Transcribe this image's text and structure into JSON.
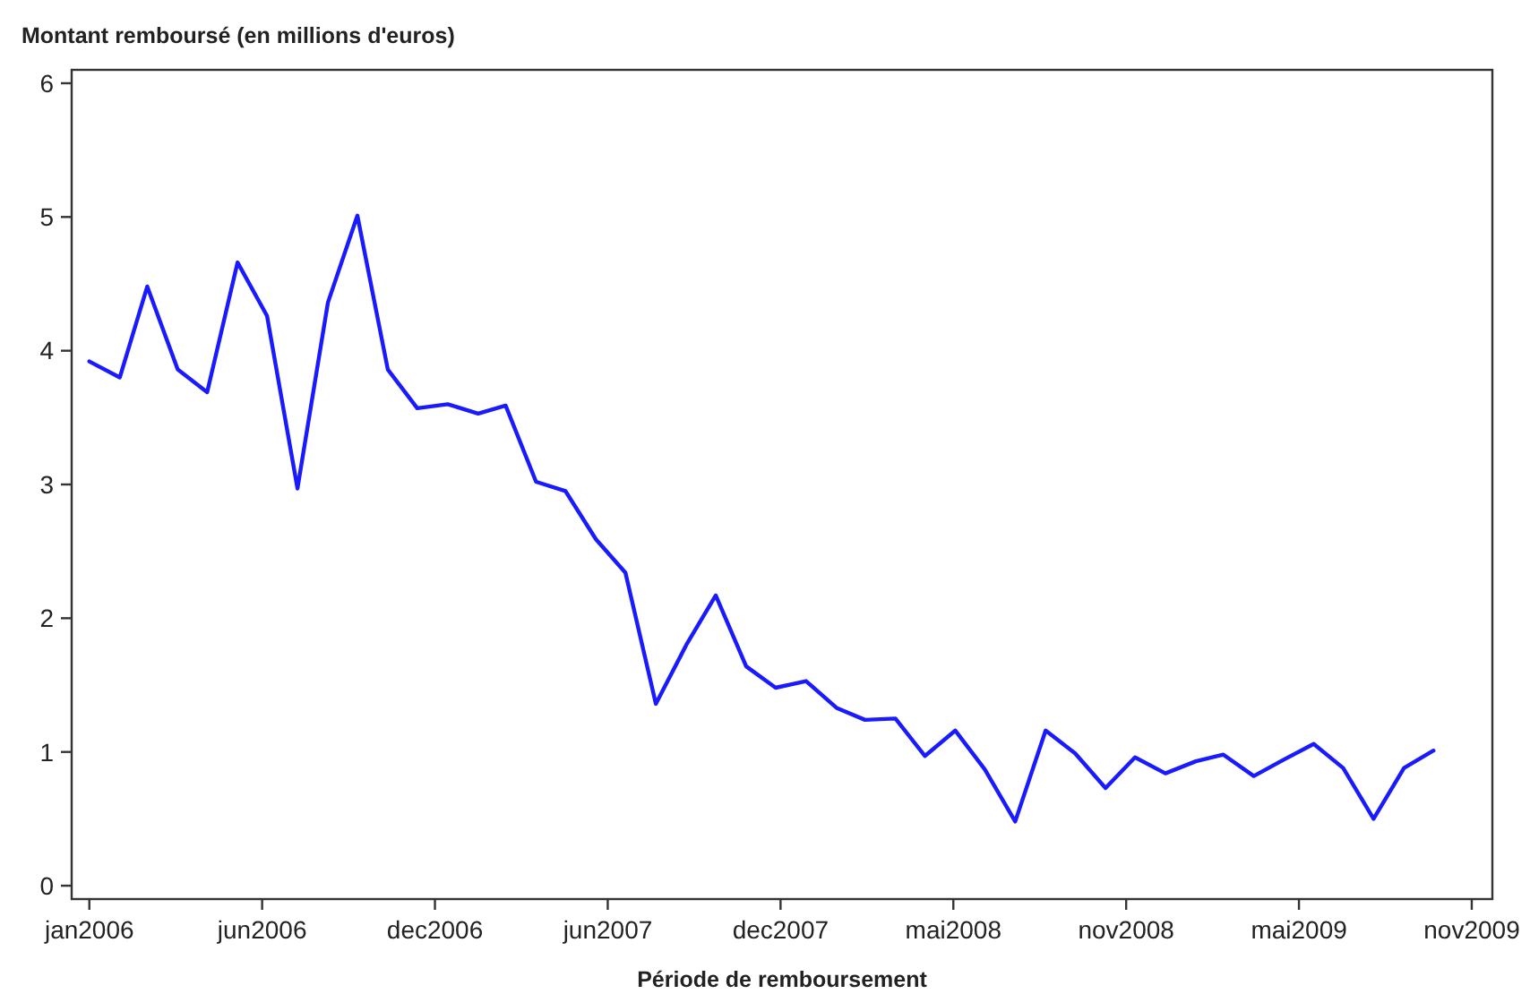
{
  "chart_data": {
    "type": "line",
    "ylabel": "Montant remboursé (en millions d'euros)",
    "xlabel": "Période de remboursement",
    "x": [
      "2006-01",
      "2006-02",
      "2006-03",
      "2006-04",
      "2006-05",
      "2006-06",
      "2006-07",
      "2006-08",
      "2006-09",
      "2006-10",
      "2006-11",
      "2006-12",
      "2007-01",
      "2007-02",
      "2007-03",
      "2007-04",
      "2007-05",
      "2007-06",
      "2007-07",
      "2007-08",
      "2007-09",
      "2007-10",
      "2007-11",
      "2007-12",
      "2008-01",
      "2008-02",
      "2008-03",
      "2008-04",
      "2008-05",
      "2008-06",
      "2008-07",
      "2008-08",
      "2008-09",
      "2008-10",
      "2008-11",
      "2008-12",
      "2009-01",
      "2009-02",
      "2009-03",
      "2009-04",
      "2009-05",
      "2009-06",
      "2009-07",
      "2009-08",
      "2009-09",
      "2009-10"
    ],
    "series": [
      {
        "color": "#1a1aff",
        "values": [
          3.92,
          3.8,
          4.48,
          3.86,
          3.69,
          4.66,
          4.26,
          2.97,
          4.36,
          5.01,
          3.86,
          3.57,
          3.6,
          3.53,
          3.59,
          3.02,
          2.95,
          2.59,
          2.34,
          1.36,
          1.8,
          2.17,
          1.64,
          1.48,
          1.53,
          1.33,
          1.24,
          1.25,
          0.97,
          1.16,
          0.87,
          0.48,
          1.16,
          0.99,
          0.73,
          0.96,
          0.84,
          0.93,
          0.98,
          0.82,
          0.94,
          1.06,
          0.88,
          0.5,
          0.88,
          1.01
        ]
      }
    ],
    "xlim": [
      "2005-12-14",
      "2009-11-30"
    ],
    "xticks": [
      {
        "value": "2006-01-01",
        "label": "jan2006"
      },
      {
        "value": "2006-06-26",
        "label": "jun2006"
      },
      {
        "value": "2006-12-19",
        "label": "dec2006"
      },
      {
        "value": "2007-06-13",
        "label": "jun2007"
      },
      {
        "value": "2007-12-06",
        "label": "dec2007"
      },
      {
        "value": "2008-05-30",
        "label": "mai2008"
      },
      {
        "value": "2008-11-22",
        "label": "nov2008"
      },
      {
        "value": "2009-05-17",
        "label": "mai2009"
      },
      {
        "value": "2009-11-09",
        "label": "nov2009"
      }
    ],
    "ylim": [
      -0.1,
      6.1
    ],
    "yticks": [
      0,
      1,
      2,
      3,
      4,
      5,
      6
    ],
    "grid": false,
    "marker": "none",
    "line_style": "solid"
  }
}
